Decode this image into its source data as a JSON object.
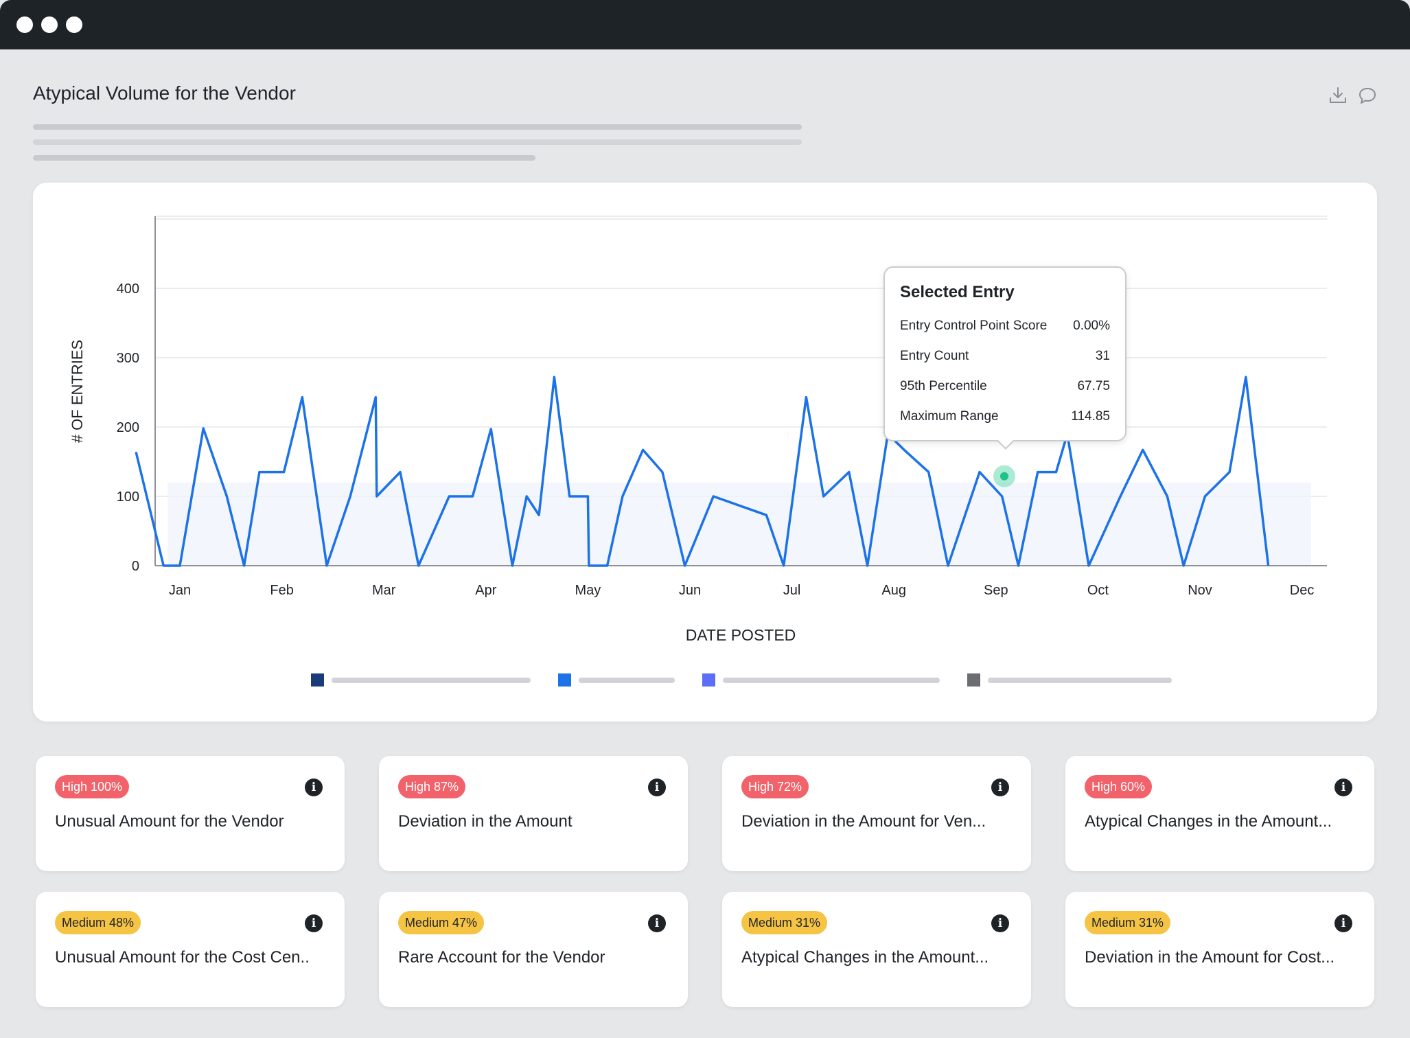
{
  "header": {
    "title": "Atypical Volume for the Vendor",
    "download_icon": "download-icon",
    "comment_icon": "comment-icon"
  },
  "chart_data": {
    "type": "line",
    "title": "",
    "xlabel": "DATE POSTED",
    "ylabel": "# OF ENTRIES",
    "ylim": [
      0,
      500
    ],
    "yticks": [
      0,
      100,
      200,
      300,
      400
    ],
    "x_tick_labels": [
      "Jan",
      "Feb",
      "Mar",
      "Apr",
      "May",
      "Jun",
      "Jul",
      "Aug",
      "Sep",
      "Oct",
      "Nov",
      "Dec"
    ],
    "grid": "horizontal",
    "band": {
      "from": 0,
      "to": 120
    },
    "series": [
      {
        "color": "#1d72e8",
        "points": [
          [
            0.07,
            164
          ],
          [
            0.34,
            0
          ],
          [
            0.5,
            0
          ],
          [
            0.73,
            198
          ],
          [
            0.96,
            100
          ],
          [
            1.13,
            0
          ],
          [
            1.28,
            135
          ],
          [
            1.52,
            135
          ],
          [
            1.7,
            243
          ],
          [
            1.94,
            0
          ],
          [
            2.17,
            100
          ],
          [
            2.42,
            243
          ],
          [
            2.43,
            100
          ],
          [
            2.66,
            135
          ],
          [
            2.84,
            0
          ],
          [
            3.14,
            100
          ],
          [
            3.37,
            100
          ],
          [
            3.55,
            197
          ],
          [
            3.76,
            0
          ],
          [
            3.9,
            100
          ],
          [
            4.02,
            73
          ],
          [
            4.17,
            272
          ],
          [
            4.32,
            100
          ],
          [
            4.5,
            100
          ],
          [
            4.51,
            0
          ],
          [
            4.69,
            0
          ],
          [
            4.84,
            100
          ],
          [
            5.04,
            167
          ],
          [
            5.23,
            135
          ],
          [
            5.45,
            0
          ],
          [
            5.73,
            100
          ],
          [
            6.25,
            73
          ],
          [
            6.42,
            0
          ],
          [
            6.64,
            243
          ],
          [
            6.81,
            100
          ],
          [
            7.06,
            135
          ],
          [
            7.24,
            0
          ],
          [
            7.44,
            190
          ],
          [
            7.6,
            167
          ],
          [
            7.84,
            135
          ],
          [
            8.03,
            0
          ],
          [
            8.34,
            135
          ],
          [
            8.56,
            100
          ],
          [
            8.72,
            0
          ],
          [
            8.91,
            135
          ],
          [
            9.09,
            135
          ],
          [
            9.2,
            190
          ],
          [
            9.41,
            0
          ],
          [
            9.72,
            100
          ],
          [
            9.94,
            167
          ],
          [
            10.18,
            100
          ],
          [
            10.34,
            0
          ],
          [
            10.55,
            100
          ],
          [
            10.79,
            135
          ],
          [
            10.95,
            272
          ],
          [
            11.17,
            0
          ]
        ]
      }
    ],
    "legend": [
      {
        "color": "#1b3a7a"
      },
      {
        "color": "#1d72e8"
      },
      {
        "color": "#5b6ef5"
      },
      {
        "color": "#6b6d72"
      }
    ]
  },
  "tooltip": {
    "title": "Selected Entry",
    "rows": [
      {
        "label": "Entry Control Point Score",
        "value": "0.00%"
      },
      {
        "label": "Entry Count",
        "value": "31"
      },
      {
        "label": "95th Percentile",
        "value": "67.75"
      },
      {
        "label": "Maximum Range",
        "value": "114.85"
      }
    ]
  },
  "cards": [
    {
      "badge": "High 100%",
      "level": "high",
      "title": "Unusual Amount for the Vendor"
    },
    {
      "badge": "High 87%",
      "level": "high",
      "title": "Deviation in the Amount"
    },
    {
      "badge": "High 72%",
      "level": "high",
      "title": "Deviation in the Amount for Ven..."
    },
    {
      "badge": "High 60%",
      "level": "high",
      "title": "Atypical Changes in the Amount..."
    },
    {
      "badge": "Medium 48%",
      "level": "medium",
      "title": "Unusual Amount for the Cost Cen.."
    },
    {
      "badge": "Medium 47%",
      "level": "medium",
      "title": "Rare Account for the Vendor"
    },
    {
      "badge": "Medium 31%",
      "level": "medium",
      "title": "Atypical Changes in the Amount..."
    },
    {
      "badge": "Medium 31%",
      "level": "medium",
      "title": "Deviation in the Amount for Cost..."
    }
  ],
  "colors": {
    "high": "#f2626a",
    "medium": "#f6c445",
    "line": "#1d72e8",
    "selected_point": "#1fc18a"
  }
}
